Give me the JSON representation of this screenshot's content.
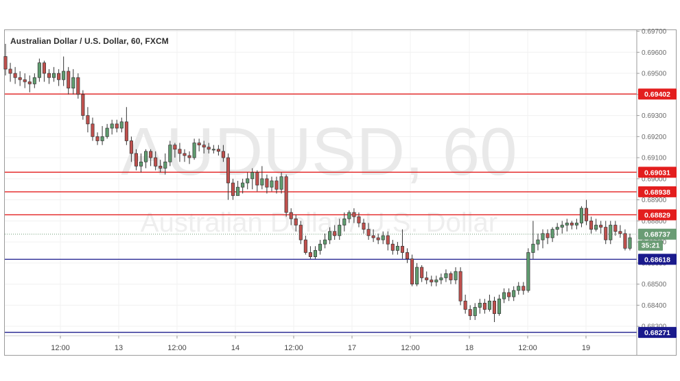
{
  "title": "Australian Dollar / U.S. Dollar, 60, FXCM",
  "watermark": {
    "symbol": "AUDUSD, 60",
    "name": "Australian Dollar / U.S. Dollar"
  },
  "countdown": "35:21",
  "colors": {
    "up": "#5f9c6f",
    "down": "#c0504d",
    "resistance": "#e31e1e",
    "support": "#1a1a8c",
    "current": "#6a9c74"
  },
  "chart_data": {
    "type": "candlestick",
    "title": "Australian Dollar / U.S. Dollar, 60, FXCM",
    "ylim": [
      0.6825,
      0.697
    ],
    "y_ticks": [
      "0.69700",
      "0.69600",
      "0.69500",
      "0.69400",
      "0.69300",
      "0.69200",
      "0.69100",
      "0.69000",
      "0.68900",
      "0.68800",
      "0.68700",
      "0.68600",
      "0.68500",
      "0.68400",
      "0.68300"
    ],
    "x_labels": [
      "12:00",
      "13",
      "12:00",
      "14",
      "12:00",
      "17",
      "12:00",
      "18",
      "12:00",
      "19"
    ],
    "levels": [
      {
        "label": "0.69402",
        "value": 0.69402,
        "kind": "resistance"
      },
      {
        "label": "0.69031",
        "value": 0.69031,
        "kind": "resistance"
      },
      {
        "label": "0.68938",
        "value": 0.68938,
        "kind": "resistance"
      },
      {
        "label": "0.68829",
        "value": 0.68829,
        "kind": "resistance"
      },
      {
        "label": "0.68618",
        "value": 0.68618,
        "kind": "support"
      },
      {
        "label": "0.68271",
        "value": 0.68271,
        "kind": "support"
      }
    ],
    "current_price": {
      "label": "0.68737",
      "value": 0.68737
    },
    "candles": [
      [
        0.6958,
        0.6952,
        0.6964,
        0.6949
      ],
      [
        0.6952,
        0.695,
        0.6955,
        0.6946
      ],
      [
        0.695,
        0.6948,
        0.6953,
        0.6945
      ],
      [
        0.6948,
        0.6947,
        0.6951,
        0.6944
      ],
      [
        0.6947,
        0.6946,
        0.695,
        0.6943
      ],
      [
        0.6946,
        0.6945,
        0.6949,
        0.6941
      ],
      [
        0.6945,
        0.6948,
        0.695,
        0.6943
      ],
      [
        0.6948,
        0.6955,
        0.6957,
        0.6946
      ],
      [
        0.6955,
        0.695,
        0.6956,
        0.6946
      ],
      [
        0.695,
        0.6948,
        0.6952,
        0.6945
      ],
      [
        0.6948,
        0.695,
        0.6953,
        0.6946
      ],
      [
        0.695,
        0.6947,
        0.6952,
        0.6944
      ],
      [
        0.6947,
        0.6951,
        0.6958,
        0.6944
      ],
      [
        0.6951,
        0.6943,
        0.6953,
        0.694
      ],
      [
        0.6943,
        0.6948,
        0.6952,
        0.694
      ],
      [
        0.6948,
        0.694,
        0.695,
        0.6938
      ],
      [
        0.694,
        0.693,
        0.6942,
        0.6928
      ],
      [
        0.693,
        0.6926,
        0.6934,
        0.6922
      ],
      [
        0.6926,
        0.692,
        0.6929,
        0.6918
      ],
      [
        0.692,
        0.6918,
        0.6922,
        0.6916
      ],
      [
        0.6918,
        0.692,
        0.6925,
        0.6916
      ],
      [
        0.692,
        0.6924,
        0.6926,
        0.6919
      ],
      [
        0.6924,
        0.6926,
        0.6928,
        0.6921
      ],
      [
        0.6926,
        0.6924,
        0.6928,
        0.6922
      ],
      [
        0.6924,
        0.6927,
        0.6929,
        0.6922
      ],
      [
        0.6927,
        0.6918,
        0.6934,
        0.6916
      ],
      [
        0.6918,
        0.6912,
        0.692,
        0.6908
      ],
      [
        0.6912,
        0.6906,
        0.6914,
        0.6904
      ],
      [
        0.6906,
        0.6908,
        0.6912,
        0.6903
      ],
      [
        0.6908,
        0.6913,
        0.6914,
        0.6905
      ],
      [
        0.6913,
        0.691,
        0.6914,
        0.6906
      ],
      [
        0.691,
        0.6906,
        0.6913,
        0.6904
      ],
      [
        0.6906,
        0.6905,
        0.6909,
        0.6903
      ],
      [
        0.6905,
        0.6908,
        0.6912,
        0.6902
      ],
      [
        0.6908,
        0.6916,
        0.6918,
        0.6906
      ],
      [
        0.6916,
        0.6914,
        0.6917,
        0.691
      ],
      [
        0.6914,
        0.6912,
        0.6917,
        0.6908
      ],
      [
        0.6912,
        0.6911,
        0.6914,
        0.6908
      ],
      [
        0.6911,
        0.691,
        0.6913,
        0.6907
      ],
      [
        0.691,
        0.6917,
        0.6919,
        0.6909
      ],
      [
        0.6917,
        0.6916,
        0.6919,
        0.6913
      ],
      [
        0.6916,
        0.6915,
        0.6918,
        0.6912
      ],
      [
        0.6915,
        0.6914,
        0.6917,
        0.6912
      ],
      [
        0.6914,
        0.6914,
        0.6916,
        0.6912
      ],
      [
        0.6914,
        0.6913,
        0.6916,
        0.6911
      ],
      [
        0.6913,
        0.691,
        0.6916,
        0.6908
      ],
      [
        0.691,
        0.6898,
        0.6912,
        0.689
      ],
      [
        0.6898,
        0.6892,
        0.69,
        0.689
      ],
      [
        0.6892,
        0.6896,
        0.6899,
        0.6892
      ],
      [
        0.6896,
        0.6898,
        0.69,
        0.6893
      ],
      [
        0.6898,
        0.69,
        0.6903,
        0.6895
      ],
      [
        0.69,
        0.6903,
        0.6905,
        0.6895
      ],
      [
        0.6903,
        0.6897,
        0.6904,
        0.6894
      ],
      [
        0.6897,
        0.69,
        0.6906,
        0.6895
      ],
      [
        0.69,
        0.6896,
        0.6902,
        0.6893
      ],
      [
        0.6896,
        0.6899,
        0.6901,
        0.6894
      ],
      [
        0.6899,
        0.6895,
        0.6901,
        0.6893
      ],
      [
        0.6895,
        0.6901,
        0.6903,
        0.6893
      ],
      [
        0.6901,
        0.6884,
        0.6902,
        0.6882
      ],
      [
        0.6884,
        0.6881,
        0.6886,
        0.6878
      ],
      [
        0.6881,
        0.6878,
        0.6883,
        0.6875
      ],
      [
        0.6878,
        0.6871,
        0.688,
        0.6869
      ],
      [
        0.6871,
        0.6865,
        0.6873,
        0.6864
      ],
      [
        0.6865,
        0.6863,
        0.6868,
        0.6862
      ],
      [
        0.6863,
        0.6866,
        0.6868,
        0.6862
      ],
      [
        0.6866,
        0.6869,
        0.6871,
        0.6864
      ],
      [
        0.6869,
        0.6871,
        0.6874,
        0.6867
      ],
      [
        0.6871,
        0.6875,
        0.6877,
        0.6869
      ],
      [
        0.6875,
        0.6873,
        0.6878,
        0.6871
      ],
      [
        0.6873,
        0.6878,
        0.6881,
        0.6871
      ],
      [
        0.6878,
        0.6881,
        0.6884,
        0.6875
      ],
      [
        0.6881,
        0.6884,
        0.6885,
        0.6879
      ],
      [
        0.6884,
        0.6882,
        0.6886,
        0.6879
      ],
      [
        0.6882,
        0.6879,
        0.6884,
        0.6877
      ],
      [
        0.6879,
        0.6876,
        0.6881,
        0.6874
      ],
      [
        0.6876,
        0.6873,
        0.6879,
        0.6871
      ],
      [
        0.6873,
        0.6872,
        0.6876,
        0.687
      ],
      [
        0.6872,
        0.6871,
        0.6874,
        0.6869
      ],
      [
        0.6871,
        0.6873,
        0.6875,
        0.6869
      ],
      [
        0.6873,
        0.6869,
        0.6875,
        0.6866
      ],
      [
        0.6869,
        0.6866,
        0.6871,
        0.6864
      ],
      [
        0.6866,
        0.6868,
        0.687,
        0.6864
      ],
      [
        0.6868,
        0.6865,
        0.6876,
        0.6862
      ],
      [
        0.6865,
        0.6862,
        0.6867,
        0.686
      ],
      [
        0.6862,
        0.685,
        0.6864,
        0.6849
      ],
      [
        0.685,
        0.6858,
        0.686,
        0.6849
      ],
      [
        0.6858,
        0.6853,
        0.6859,
        0.6851
      ],
      [
        0.6853,
        0.6852,
        0.6856,
        0.685
      ],
      [
        0.6852,
        0.6851,
        0.6854,
        0.6849
      ],
      [
        0.6851,
        0.6852,
        0.6854,
        0.6849
      ],
      [
        0.6852,
        0.6853,
        0.6855,
        0.685
      ],
      [
        0.6853,
        0.6855,
        0.6857,
        0.6851
      ],
      [
        0.6855,
        0.6852,
        0.6856,
        0.685
      ],
      [
        0.6852,
        0.6856,
        0.6858,
        0.685
      ],
      [
        0.6856,
        0.6842,
        0.6858,
        0.684
      ],
      [
        0.6842,
        0.6838,
        0.6845,
        0.6836
      ],
      [
        0.6838,
        0.6835,
        0.684,
        0.6833
      ],
      [
        0.6835,
        0.6839,
        0.6841,
        0.6833
      ],
      [
        0.6839,
        0.6841,
        0.6843,
        0.6836
      ],
      [
        0.6841,
        0.6838,
        0.6843,
        0.6836
      ],
      [
        0.6838,
        0.6842,
        0.6845,
        0.6837
      ],
      [
        0.6842,
        0.6836,
        0.6844,
        0.6832
      ],
      [
        0.6836,
        0.6843,
        0.6845,
        0.6835
      ],
      [
        0.6843,
        0.6846,
        0.6848,
        0.6841
      ],
      [
        0.6846,
        0.6844,
        0.6848,
        0.6842
      ],
      [
        0.6844,
        0.6847,
        0.6849,
        0.6842
      ],
      [
        0.6847,
        0.6849,
        0.6851,
        0.6845
      ],
      [
        0.6849,
        0.6847,
        0.6851,
        0.6845
      ],
      [
        0.6847,
        0.6865,
        0.6867,
        0.6846
      ],
      [
        0.6865,
        0.6869,
        0.688,
        0.6862
      ],
      [
        0.6869,
        0.6871,
        0.6874,
        0.6866
      ],
      [
        0.6871,
        0.6874,
        0.6876,
        0.6867
      ],
      [
        0.6874,
        0.6872,
        0.6876,
        0.6869
      ],
      [
        0.6872,
        0.6876,
        0.6877,
        0.687
      ],
      [
        0.6876,
        0.6877,
        0.6879,
        0.6873
      ],
      [
        0.6877,
        0.6878,
        0.688,
        0.6874
      ],
      [
        0.6878,
        0.6879,
        0.6881,
        0.6875
      ],
      [
        0.6879,
        0.6878,
        0.688,
        0.6876
      ],
      [
        0.6878,
        0.6879,
        0.6881,
        0.6876
      ],
      [
        0.6879,
        0.6886,
        0.6887,
        0.6877
      ],
      [
        0.6886,
        0.688,
        0.689,
        0.6878
      ],
      [
        0.688,
        0.6876,
        0.6882,
        0.6874
      ],
      [
        0.6876,
        0.6878,
        0.6881,
        0.6875
      ],
      [
        0.6878,
        0.6877,
        0.688,
        0.6874
      ],
      [
        0.6877,
        0.6871,
        0.688,
        0.6869
      ],
      [
        0.6871,
        0.6878,
        0.688,
        0.6869
      ],
      [
        0.6878,
        0.6875,
        0.688,
        0.6873
      ],
      [
        0.6875,
        0.6874,
        0.6878,
        0.6872
      ],
      [
        0.6874,
        0.6867,
        0.6876,
        0.6866
      ],
      [
        0.6867,
        0.6872,
        0.6874,
        0.6866
      ]
    ]
  }
}
